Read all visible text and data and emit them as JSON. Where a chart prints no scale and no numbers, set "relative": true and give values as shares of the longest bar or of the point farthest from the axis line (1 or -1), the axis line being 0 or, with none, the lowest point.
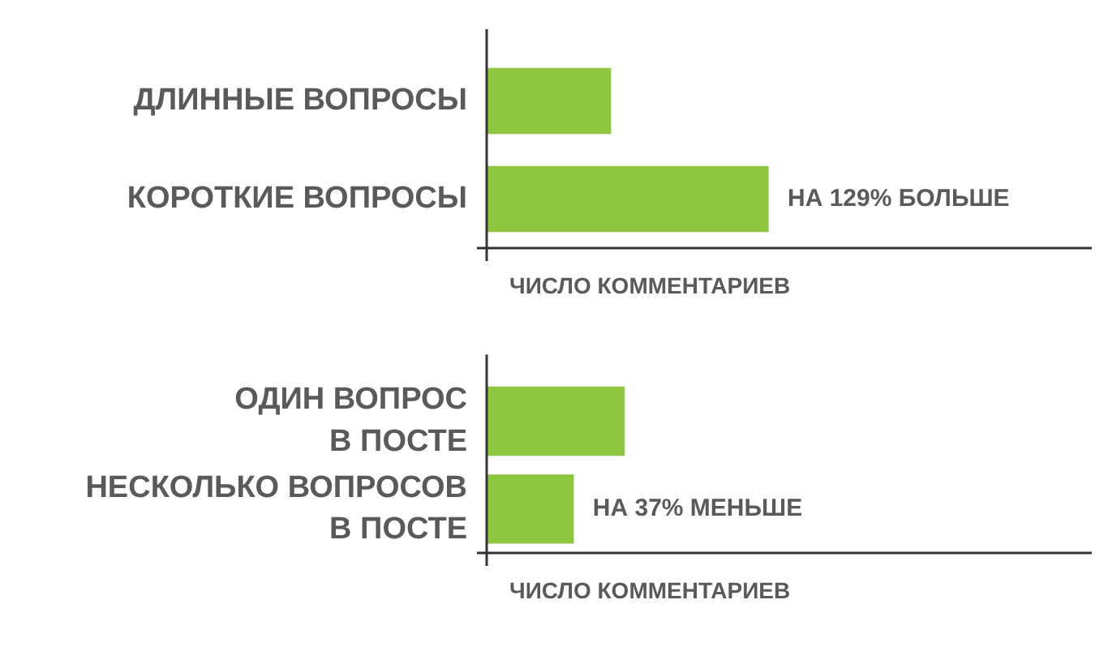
{
  "chart_data": [
    {
      "type": "bar",
      "orientation": "horizontal",
      "relative": true,
      "xlabel": "ЧИСЛО КОММЕНТАРИЕВ",
      "categories": [
        "ДЛИННЫЕ ВОПРОСЫ",
        "КОРОТКИЕ ВОПРОСЫ"
      ],
      "values": [
        0.44,
        1
      ],
      "color": "#8dc63f",
      "annotations": [
        {
          "text": "НА 129% БОЛЬШЕ",
          "x": 1,
          "y": "КОРОТКИЕ ВОПРОСЫ"
        }
      ]
    },
    {
      "type": "bar",
      "orientation": "horizontal",
      "relative": true,
      "xlabel": "ЧИСЛО КОММЕНТАРИЕВ",
      "categories": [
        "ОДИН ВОПРОС В ПОСТЕ",
        "НЕСКОЛЬКО ВОПРОСОВ В ПОСТЕ"
      ],
      "values": [
        1,
        0.63
      ],
      "color": "#8dc63f",
      "annotations": [
        {
          "text": "НА 37% МЕНЬШЕ",
          "x": 0.63,
          "y": "НЕСКОЛЬКО ВОПРОСОВ В ПОСТЕ"
        }
      ]
    }
  ]
}
